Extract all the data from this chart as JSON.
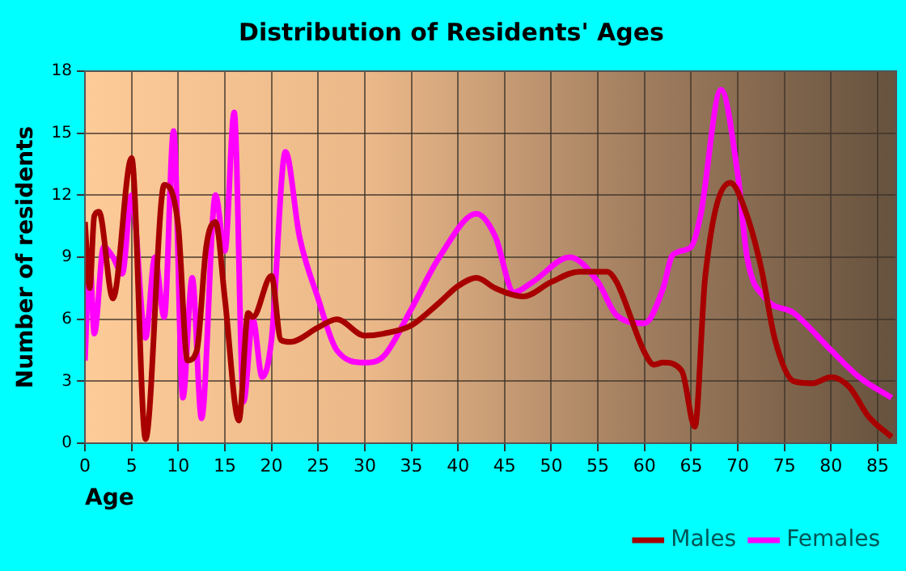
{
  "chart_data": {
    "type": "line",
    "title": "Distribution of Residents' Ages",
    "xlabel": "Age",
    "ylabel": "Number of residents",
    "xlim": [
      0,
      87
    ],
    "xticks": [
      0,
      5,
      10,
      15,
      20,
      25,
      30,
      35,
      40,
      45,
      50,
      55,
      60,
      65,
      70,
      75,
      80,
      85
    ],
    "ylim": [
      0,
      18
    ],
    "yticks": [
      0,
      3,
      6,
      9,
      12,
      15,
      18
    ],
    "grid": true,
    "legend": "bottom right",
    "marker": "none",
    "line_style": "solid",
    "series": [
      {
        "name": "Males",
        "color": "#a80000",
        "x": [
          0,
          0.5,
          1,
          1.5,
          3,
          5,
          6.5,
          8.5,
          10,
          11,
          12,
          13,
          14,
          15,
          16.5,
          17.5,
          18,
          20,
          21,
          22,
          25,
          27,
          30,
          32,
          35,
          38,
          40,
          42,
          44,
          47,
          50,
          53,
          56,
          57,
          60,
          61,
          62,
          64,
          65.4,
          66.5,
          69.2,
          71,
          72.5,
          74,
          76,
          78,
          80,
          82,
          84,
          86.5
        ],
        "values": [
          10.7,
          7.5,
          11,
          11.2,
          7,
          13.8,
          0.2,
          12.5,
          10.5,
          4,
          4.5,
          9.5,
          10.7,
          7,
          1.1,
          6.3,
          6.1,
          8.1,
          5,
          4.9,
          5.6,
          6,
          5.2,
          5.3,
          5.7,
          6.8,
          7.6,
          8,
          7.5,
          7.1,
          7.8,
          8.3,
          8.3,
          7.8,
          4.4,
          3.8,
          3.9,
          3.5,
          0.8,
          8,
          12.6,
          11,
          8.5,
          5,
          3,
          2.9,
          3.2,
          2.7,
          1.3,
          0.3
        ]
      },
      {
        "name": "Females",
        "color": "#ff00ff",
        "x": [
          0,
          0.5,
          1,
          2,
          3,
          4,
          5,
          6.5,
          7.5,
          8.5,
          9.5,
          10.5,
          11.5,
          12.5,
          14,
          15,
          16,
          17,
          18,
          19,
          20,
          21.5,
          23,
          25,
          27,
          30,
          32,
          35,
          38,
          42,
          44,
          46,
          48,
          52,
          55,
          57,
          60,
          62,
          63,
          65,
          66,
          68.2,
          70,
          71,
          73,
          76,
          80,
          83,
          86.5
        ],
        "values": [
          4,
          9,
          5.3,
          9.5,
          9,
          8.2,
          12,
          5.1,
          9,
          6.1,
          15.1,
          2.2,
          8,
          1.2,
          12,
          9.3,
          16,
          2,
          6,
          3.2,
          5,
          14.1,
          10,
          7,
          4.5,
          3.9,
          4.2,
          6.5,
          9,
          11.1,
          10,
          7.3,
          7.8,
          9,
          7.8,
          6.2,
          5.8,
          7.5,
          9.1,
          9.5,
          11,
          17.1,
          13,
          9,
          7,
          6.3,
          4.5,
          3.2,
          2.2
        ]
      }
    ]
  }
}
